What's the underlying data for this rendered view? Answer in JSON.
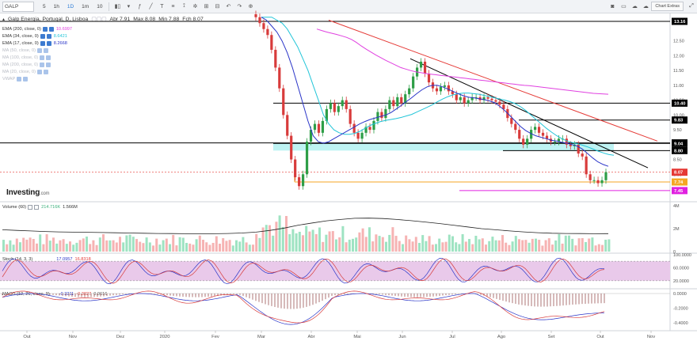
{
  "toolbar": {
    "symbol": "GALP",
    "intervals": [
      "5",
      "1h",
      "1D",
      "1m",
      "10"
    ],
    "active_interval_index": 2,
    "chart_button": "Chart Extras"
  },
  "header": {
    "title": "Galp Energia, Portugal, D, Lisboa",
    "open": "Abr 7.91",
    "high": "Max 8.08",
    "low": "Min 7.88",
    "close": "Fch 8.07"
  },
  "indicators": [
    {
      "label": "EMA (200, close, 0)",
      "value": "10.6997",
      "color": "#e040e0",
      "active": true
    },
    {
      "label": "EMA (34, close, 0)",
      "value": "8.6421",
      "color": "#22c5d8",
      "active": true
    },
    {
      "label": "EMA (17, close, 0)",
      "value": "8.2668",
      "color": "#2a35c8",
      "active": true
    },
    {
      "label": "MA (50, close, 0)",
      "value": "",
      "color": "#b8bcc4",
      "active": false
    },
    {
      "label": "MA (100, close, 0)",
      "value": "",
      "color": "#b8bcc4",
      "active": false
    },
    {
      "label": "MA (200, close, 0)",
      "value": "",
      "color": "#b8bcc4",
      "active": false
    },
    {
      "label": "MA (20, close, 0)",
      "value": "",
      "color": "#b8bcc4",
      "active": false
    },
    {
      "label": "VWAP",
      "value": "",
      "color": "#b8bcc4",
      "active": false
    }
  ],
  "brand": {
    "name": "Investing",
    "suffix": ".com"
  },
  "volume_pane": {
    "label": "Volume (60)",
    "value1": "214.716K",
    "value2": "1.566M",
    "axis": [
      "4M",
      "2M",
      "0"
    ]
  },
  "stoch_pane": {
    "label": "Stoch (14, 3, 3)",
    "value1": "17.0957",
    "value2": "16.8318",
    "axis": [
      "100.0000",
      "60.0000",
      "20.0000"
    ]
  },
  "macd_pane": {
    "label": "MACD (12, 26, close, 9)",
    "value1": "-0.3211",
    "value2": "-0.3827",
    "value3": "0.0616",
    "axis": [
      "0.0000",
      "-0.2000",
      "-0.4000"
    ]
  },
  "price_axis": {
    "ticks": [
      "12.50",
      "12.00",
      "11.50",
      "11.00",
      "10.50",
      "10.00",
      "9.50",
      "9.00",
      "8.50",
      "8.00",
      "7.50"
    ],
    "badges": [
      {
        "text": "13.16",
        "value": 13.16,
        "color": "#000000"
      },
      {
        "text": "10.40",
        "value": 10.4,
        "color": "#000000"
      },
      {
        "text": "9.83",
        "value": 9.83,
        "color": "#000000"
      },
      {
        "text": "9.06",
        "value": 9.06,
        "color": "#000000"
      },
      {
        "text": "9.04",
        "value": 9.04,
        "color": "#000000"
      },
      {
        "text": "8.80",
        "value": 8.8,
        "color": "#000000"
      },
      {
        "text": "8.07",
        "value": 8.07,
        "color": "#e53935"
      },
      {
        "text": "7.74",
        "value": 7.74,
        "color": "#f5a623"
      },
      {
        "text": "7.45",
        "value": 7.45,
        "color": "#e020e0"
      }
    ]
  },
  "time_axis": [
    "Out",
    "Nov",
    "Dez",
    "2020",
    "Fev",
    "Mar",
    "Abr",
    "Mai",
    "Jun",
    "Jul",
    "Ago",
    "Set",
    "Out",
    "Nov"
  ],
  "chart_data": {
    "type": "candlestick",
    "closes": [
      13.3,
      13.1,
      12.9,
      12.7,
      12.2,
      11.6,
      10.9,
      10.0,
      9.3,
      8.5,
      7.9,
      7.6,
      8.0,
      9.1,
      9.5,
      9.7,
      9.4,
      9.8,
      10.2,
      10.4,
      10.1,
      10.3,
      10.5,
      10.2,
      9.7,
      9.4,
      9.2,
      9.4,
      9.6,
      9.5,
      9.8,
      10.1,
      9.9,
      10.2,
      10.5,
      10.3,
      10.6,
      10.4,
      10.7,
      10.9,
      11.3,
      11.6,
      11.8,
      11.4,
      11.1,
      10.9,
      10.8,
      10.95,
      11.0,
      10.8,
      10.7,
      10.5,
      10.6,
      10.4,
      10.5,
      10.6,
      10.6,
      10.5,
      10.6,
      10.55,
      10.5,
      10.45,
      10.35,
      10.2,
      9.9,
      9.7,
      9.5,
      9.2,
      9.0,
      9.2,
      9.5,
      9.6,
      9.4,
      9.3,
      9.2,
      9.1,
      9.1,
      9.2,
      9.2,
      9.0,
      8.95,
      9.0,
      8.7,
      8.6,
      8.0,
      7.8,
      7.8,
      7.7,
      7.8,
      8.07
    ],
    "ema200": [
      12.9,
      12.85,
      12.8,
      12.76,
      12.72,
      12.67,
      12.62,
      12.55,
      12.45,
      12.33,
      12.22,
      12.12,
      12.02,
      11.93,
      11.84,
      11.76,
      11.68,
      11.6,
      11.55,
      11.5,
      11.46,
      11.43,
      11.4,
      11.38,
      11.36,
      11.34,
      11.32,
      11.3,
      11.28,
      11.26,
      11.24,
      11.22,
      11.2,
      11.18,
      11.16,
      11.14,
      11.12,
      11.1,
      11.08,
      11.06,
      11.04,
      11.02,
      11.0,
      10.99,
      10.97,
      10.95,
      10.93,
      10.91,
      10.89,
      10.87,
      10.85,
      10.83,
      10.81,
      10.79,
      10.77,
      10.75,
      10.73,
      10.72,
      10.71,
      10.7
    ],
    "ema34": [
      13.3,
      13.3,
      13.3,
      13.2,
      13.1,
      12.9,
      12.6,
      12.3,
      11.9,
      11.5,
      11.0,
      10.5,
      10.0,
      9.7,
      9.5,
      9.4,
      9.35,
      9.35,
      9.38,
      9.45,
      9.55,
      9.65,
      9.72,
      9.78,
      9.82,
      9.85,
      9.88,
      9.92,
      9.97,
      10.02,
      10.1,
      10.18,
      10.26,
      10.35,
      10.45,
      10.54,
      10.62,
      10.68,
      10.72,
      10.74,
      10.74,
      10.72,
      10.7,
      10.66,
      10.62,
      10.58,
      10.54,
      10.5,
      10.45,
      10.38,
      10.28,
      10.15,
      10.0,
      9.85,
      9.7,
      9.55,
      9.42,
      9.3,
      9.2,
      9.12,
      9.07,
      9.03,
      8.98,
      8.92,
      8.85,
      8.78,
      8.72,
      8.67,
      8.64
    ],
    "ema17": [
      13.3,
      13.2,
      13.0,
      12.8,
      12.5,
      12.1,
      11.6,
      11.0,
      10.4,
      9.8,
      9.3,
      9.1,
      9.05,
      9.1,
      9.2,
      9.3,
      9.4,
      9.5,
      9.6,
      9.7,
      9.78,
      9.85,
      9.9,
      9.95,
      10.0,
      10.08,
      10.2,
      10.32,
      10.45,
      10.58,
      10.72,
      10.85,
      10.95,
      11.0,
      11.0,
      10.95,
      10.88,
      10.8,
      10.72,
      10.65,
      10.6,
      10.58,
      10.55,
      10.52,
      10.48,
      10.42,
      10.3,
      10.15,
      9.98,
      9.8,
      9.62,
      9.48,
      9.38,
      9.3,
      9.25,
      9.2,
      9.15,
      9.12,
      9.08,
      9.05,
      9.0,
      8.95,
      8.85,
      8.7,
      8.55,
      8.42,
      8.33,
      8.27
    ],
    "volume_ma": [
      1.9,
      1.85,
      1.8,
      1.75,
      1.72,
      1.7,
      1.68,
      1.66,
      1.64,
      1.62,
      1.6,
      1.58,
      1.57,
      1.56,
      1.55,
      1.56,
      1.58,
      1.62,
      1.7,
      1.85,
      2.05,
      2.3,
      2.5,
      2.68,
      2.8,
      2.9,
      2.92,
      2.88,
      2.8,
      2.7,
      2.58,
      2.45,
      2.3,
      2.15,
      2.0,
      1.9,
      1.8,
      1.72,
      1.65,
      1.6,
      1.58,
      1.57,
      1.56,
      1.566
    ],
    "volume_axis_max": 4,
    "price_range": [
      7.1,
      13.4
    ],
    "horizontal_levels": [
      13.16,
      10.4,
      9.83,
      9.06,
      9.04,
      8.8,
      8.07,
      7.74,
      7.45
    ]
  }
}
